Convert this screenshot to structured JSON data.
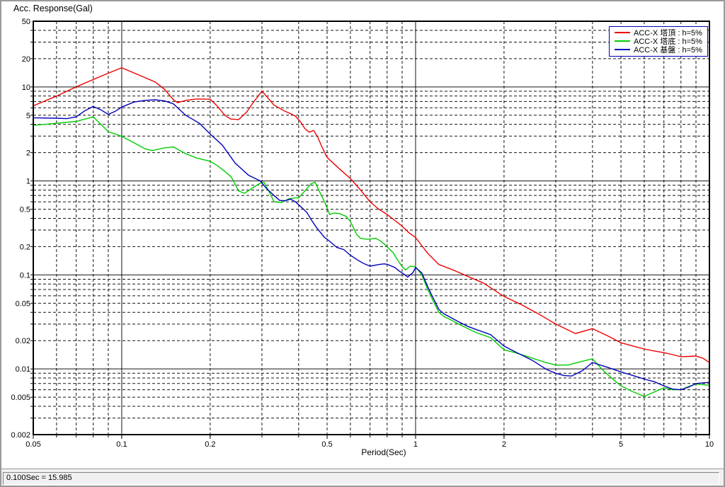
{
  "status_bar": {
    "text": "0.100Sec = 15.985"
  },
  "chart_data": {
    "type": "line",
    "title": "",
    "ylabel": "Acc. Response(Gal)",
    "xlabel": "Period(Sec)",
    "x_scale": "log",
    "y_scale": "log",
    "xlim": [
      0.05,
      10
    ],
    "ylim": [
      0.002,
      50
    ],
    "grid": "log major solid, log minor dashed",
    "legend_position": "top-right",
    "legend_border_color": "#0000bb",
    "x_ticks": [
      {
        "v": 0.05,
        "label": "0.05"
      },
      {
        "v": 0.1,
        "label": "0.1"
      },
      {
        "v": 0.2,
        "label": "0.2"
      },
      {
        "v": 0.5,
        "label": "0.5"
      },
      {
        "v": 1,
        "label": "1"
      },
      {
        "v": 2,
        "label": "2"
      },
      {
        "v": 5,
        "label": "5"
      },
      {
        "v": 10,
        "label": "10"
      }
    ],
    "y_ticks": [
      {
        "v": 50,
        "label": "50"
      },
      {
        "v": 20,
        "label": "20"
      },
      {
        "v": 10,
        "label": "10"
      },
      {
        "v": 5,
        "label": "5"
      },
      {
        "v": 2,
        "label": "2"
      },
      {
        "v": 1,
        "label": "1"
      },
      {
        "v": 0.5,
        "label": "0.5"
      },
      {
        "v": 0.2,
        "label": "0.2"
      },
      {
        "v": 0.1,
        "label": "0.1"
      },
      {
        "v": 0.05,
        "label": "0.05"
      },
      {
        "v": 0.02,
        "label": "0.02"
      },
      {
        "v": 0.01,
        "label": "0.01"
      },
      {
        "v": 0.005,
        "label": "0.005"
      },
      {
        "v": 0.002,
        "label": "0.002"
      }
    ],
    "x_grid_major": [
      0.1,
      1
    ],
    "x_grid_minor": [
      0.06,
      0.07,
      0.08,
      0.09,
      0.2,
      0.3,
      0.4,
      0.5,
      0.6,
      0.7,
      0.8,
      0.9,
      2,
      3,
      4,
      5,
      6,
      7,
      8,
      9
    ],
    "y_grid_major": [
      10,
      1,
      0.1,
      0.01
    ],
    "y_grid_minor": [
      40,
      30,
      20,
      9,
      8,
      7,
      6,
      5,
      4,
      3,
      2,
      0.9,
      0.8,
      0.7,
      0.6,
      0.5,
      0.4,
      0.3,
      0.2,
      0.09,
      0.08,
      0.07,
      0.06,
      0.05,
      0.04,
      0.03,
      0.02,
      0.009,
      0.008,
      0.007,
      0.006,
      0.005,
      0.004,
      0.003
    ],
    "series": [
      {
        "name": "ACC-X 塔頂 : h=5%",
        "color": "#ee0000",
        "points": [
          [
            0.05,
            6.3
          ],
          [
            0.06,
            8.0
          ],
          [
            0.07,
            10.0
          ],
          [
            0.08,
            12.0
          ],
          [
            0.09,
            14.0
          ],
          [
            0.1,
            16.0
          ],
          [
            0.115,
            13.3
          ],
          [
            0.13,
            11.3
          ],
          [
            0.14,
            9.4
          ],
          [
            0.15,
            7.3
          ],
          [
            0.155,
            6.8
          ],
          [
            0.165,
            7.2
          ],
          [
            0.18,
            7.45
          ],
          [
            0.2,
            7.4
          ],
          [
            0.21,
            6.4
          ],
          [
            0.225,
            4.95
          ],
          [
            0.235,
            4.55
          ],
          [
            0.25,
            4.5
          ],
          [
            0.266,
            5.4
          ],
          [
            0.28,
            6.8
          ],
          [
            0.3,
            9.05
          ],
          [
            0.317,
            7.4
          ],
          [
            0.33,
            6.4
          ],
          [
            0.36,
            5.5
          ],
          [
            0.375,
            5.2
          ],
          [
            0.39,
            4.9
          ],
          [
            0.405,
            4.3
          ],
          [
            0.42,
            3.6
          ],
          [
            0.435,
            3.3
          ],
          [
            0.45,
            3.45
          ],
          [
            0.465,
            2.9
          ],
          [
            0.48,
            2.3
          ],
          [
            0.5,
            1.78
          ],
          [
            0.55,
            1.35
          ],
          [
            0.6,
            1.06
          ],
          [
            0.65,
            0.8
          ],
          [
            0.7,
            0.6
          ],
          [
            0.75,
            0.5
          ],
          [
            0.8,
            0.44
          ],
          [
            0.85,
            0.38
          ],
          [
            0.9,
            0.33
          ],
          [
            0.95,
            0.28
          ],
          [
            1.0,
            0.25
          ],
          [
            1.1,
            0.17
          ],
          [
            1.2,
            0.129
          ],
          [
            1.35,
            0.112
          ],
          [
            1.5,
            0.097
          ],
          [
            1.7,
            0.082
          ],
          [
            2.0,
            0.059
          ],
          [
            2.3,
            0.048
          ],
          [
            2.6,
            0.039
          ],
          [
            3.0,
            0.03
          ],
          [
            3.5,
            0.0238
          ],
          [
            4.0,
            0.0268
          ],
          [
            4.5,
            0.0225
          ],
          [
            5.0,
            0.019
          ],
          [
            5.5,
            0.0175
          ],
          [
            6.0,
            0.0163
          ],
          [
            6.5,
            0.0155
          ],
          [
            7.0,
            0.0149
          ],
          [
            7.5,
            0.0142
          ],
          [
            8.0,
            0.0135
          ],
          [
            8.5,
            0.0136
          ],
          [
            9.0,
            0.0137
          ],
          [
            9.5,
            0.013
          ],
          [
            10,
            0.0117
          ]
        ]
      },
      {
        "name": "ACC-X 塔底 : h=5%",
        "color": "#00cc00",
        "points": [
          [
            0.05,
            3.9
          ],
          [
            0.06,
            4.1
          ],
          [
            0.07,
            4.3
          ],
          [
            0.075,
            4.55
          ],
          [
            0.08,
            4.8
          ],
          [
            0.085,
            4.0
          ],
          [
            0.09,
            3.35
          ],
          [
            0.1,
            2.98
          ],
          [
            0.11,
            2.55
          ],
          [
            0.12,
            2.2
          ],
          [
            0.127,
            2.1
          ],
          [
            0.14,
            2.25
          ],
          [
            0.15,
            2.3
          ],
          [
            0.165,
            1.95
          ],
          [
            0.18,
            1.75
          ],
          [
            0.2,
            1.62
          ],
          [
            0.212,
            1.45
          ],
          [
            0.225,
            1.25
          ],
          [
            0.236,
            1.1
          ],
          [
            0.25,
            0.78
          ],
          [
            0.262,
            0.74
          ],
          [
            0.28,
            0.85
          ],
          [
            0.295,
            0.94
          ],
          [
            0.305,
            0.97
          ],
          [
            0.32,
            0.73
          ],
          [
            0.33,
            0.6
          ],
          [
            0.35,
            0.59
          ],
          [
            0.37,
            0.645
          ],
          [
            0.39,
            0.66
          ],
          [
            0.4,
            0.66
          ],
          [
            0.42,
            0.78
          ],
          [
            0.44,
            0.93
          ],
          [
            0.455,
            0.97
          ],
          [
            0.47,
            0.78
          ],
          [
            0.49,
            0.6
          ],
          [
            0.51,
            0.44
          ],
          [
            0.53,
            0.455
          ],
          [
            0.55,
            0.45
          ],
          [
            0.58,
            0.42
          ],
          [
            0.6,
            0.37
          ],
          [
            0.63,
            0.27
          ],
          [
            0.65,
            0.245
          ],
          [
            0.68,
            0.24
          ],
          [
            0.7,
            0.241
          ],
          [
            0.73,
            0.246
          ],
          [
            0.76,
            0.23
          ],
          [
            0.78,
            0.215
          ],
          [
            0.8,
            0.199
          ],
          [
            0.84,
            0.172
          ],
          [
            0.86,
            0.151
          ],
          [
            0.9,
            0.123
          ],
          [
            0.925,
            0.113
          ],
          [
            0.96,
            0.124
          ],
          [
            1.0,
            0.122
          ],
          [
            1.05,
            0.1
          ],
          [
            1.1,
            0.07
          ],
          [
            1.15,
            0.052
          ],
          [
            1.2,
            0.04
          ],
          [
            1.25,
            0.036
          ],
          [
            1.3,
            0.034
          ],
          [
            1.4,
            0.03
          ],
          [
            1.5,
            0.027
          ],
          [
            1.6,
            0.0245
          ],
          [
            1.8,
            0.0215
          ],
          [
            2.0,
            0.016
          ],
          [
            2.2,
            0.0148
          ],
          [
            2.5,
            0.013
          ],
          [
            2.8,
            0.0116
          ],
          [
            3.0,
            0.011
          ],
          [
            3.3,
            0.011
          ],
          [
            3.6,
            0.0118
          ],
          [
            4.0,
            0.0128
          ],
          [
            4.3,
            0.01
          ],
          [
            4.6,
            0.0082
          ],
          [
            5.0,
            0.0066
          ],
          [
            5.5,
            0.0057
          ],
          [
            6.0,
            0.0051
          ],
          [
            6.5,
            0.0057
          ],
          [
            7.0,
            0.0063
          ],
          [
            7.5,
            0.006
          ],
          [
            8.0,
            0.006
          ],
          [
            8.5,
            0.0065
          ],
          [
            9.0,
            0.0069
          ],
          [
            9.5,
            0.0068
          ],
          [
            10,
            0.0067
          ]
        ]
      },
      {
        "name": "ACC-X 基盤 : h=5%",
        "color": "#0000bb",
        "points": [
          [
            0.05,
            4.7
          ],
          [
            0.06,
            4.65
          ],
          [
            0.065,
            4.6
          ],
          [
            0.07,
            4.8
          ],
          [
            0.075,
            5.6
          ],
          [
            0.08,
            6.2
          ],
          [
            0.085,
            5.7
          ],
          [
            0.09,
            5.1
          ],
          [
            0.095,
            5.5
          ],
          [
            0.1,
            6.1
          ],
          [
            0.11,
            6.9
          ],
          [
            0.12,
            7.2
          ],
          [
            0.13,
            7.3
          ],
          [
            0.14,
            7.1
          ],
          [
            0.15,
            6.6
          ],
          [
            0.165,
            5.0
          ],
          [
            0.184,
            4.1
          ],
          [
            0.2,
            3.15
          ],
          [
            0.22,
            2.4
          ],
          [
            0.243,
            1.55
          ],
          [
            0.27,
            1.15
          ],
          [
            0.296,
            1.0
          ],
          [
            0.31,
            0.84
          ],
          [
            0.33,
            0.7
          ],
          [
            0.345,
            0.62
          ],
          [
            0.36,
            0.615
          ],
          [
            0.375,
            0.64
          ],
          [
            0.39,
            0.6
          ],
          [
            0.41,
            0.52
          ],
          [
            0.427,
            0.46
          ],
          [
            0.443,
            0.38
          ],
          [
            0.46,
            0.32
          ],
          [
            0.49,
            0.25
          ],
          [
            0.5,
            0.24
          ],
          [
            0.54,
            0.196
          ],
          [
            0.57,
            0.186
          ],
          [
            0.6,
            0.162
          ],
          [
            0.64,
            0.142
          ],
          [
            0.67,
            0.131
          ],
          [
            0.7,
            0.124
          ],
          [
            0.75,
            0.129
          ],
          [
            0.78,
            0.131
          ],
          [
            0.8,
            0.13
          ],
          [
            0.85,
            0.12
          ],
          [
            0.88,
            0.11
          ],
          [
            0.9,
            0.105
          ],
          [
            0.925,
            0.099
          ],
          [
            0.94,
            0.095
          ],
          [
            0.98,
            0.106
          ],
          [
            1.0,
            0.12
          ],
          [
            1.05,
            0.105
          ],
          [
            1.1,
            0.075
          ],
          [
            1.15,
            0.056
          ],
          [
            1.2,
            0.043
          ],
          [
            1.25,
            0.0385
          ],
          [
            1.3,
            0.036
          ],
          [
            1.4,
            0.0318
          ],
          [
            1.5,
            0.0285
          ],
          [
            1.6,
            0.0264
          ],
          [
            1.8,
            0.0232
          ],
          [
            2.0,
            0.0175
          ],
          [
            2.2,
            0.015
          ],
          [
            2.5,
            0.0123
          ],
          [
            2.8,
            0.0098
          ],
          [
            3.0,
            0.009
          ],
          [
            3.2,
            0.0085
          ],
          [
            3.4,
            0.0084
          ],
          [
            3.7,
            0.0096
          ],
          [
            4.0,
            0.0117
          ],
          [
            4.5,
            0.0104
          ],
          [
            5.0,
            0.0093
          ],
          [
            5.5,
            0.0085
          ],
          [
            6.0,
            0.0078
          ],
          [
            6.5,
            0.0073
          ],
          [
            7.0,
            0.0066
          ],
          [
            7.5,
            0.0061
          ],
          [
            8.0,
            0.006
          ],
          [
            8.5,
            0.0064
          ],
          [
            9.0,
            0.007
          ],
          [
            9.5,
            0.0071
          ],
          [
            10,
            0.0072
          ]
        ]
      }
    ]
  }
}
